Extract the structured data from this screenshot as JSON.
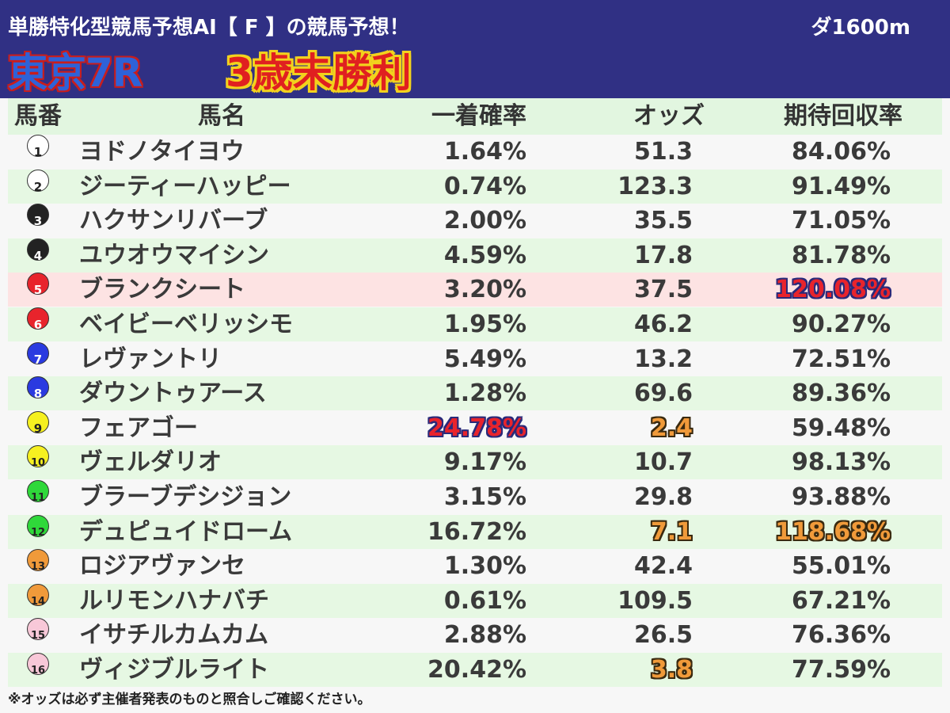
{
  "header": {
    "subtitle": "単勝特化型競馬予想AI【 F 】の競馬予想！",
    "distance": "ダ1600m",
    "venue_race": "東京7R",
    "race_class": "3歳未勝利"
  },
  "columns": {
    "number": "馬番",
    "name": "馬名",
    "win_prob": "一着確率",
    "odds": "オッズ",
    "expected_return": "期待回収率"
  },
  "colors": {
    "header_bg": "#303084",
    "row_green": "#e6f8e3",
    "row_white": "#f7f7f7",
    "row_highlight": "#fde3e3"
  },
  "rows": [
    {
      "number": "1",
      "name": "ヨドノタイヨウ",
      "win_prob": "1.64%",
      "odds": "51.3",
      "expected_return": "84.06%",
      "badge_bg": "#ffffff",
      "badge_fg": "#222222",
      "row_bg": "#f7f7f7"
    },
    {
      "number": "2",
      "name": "ジーティーハッピー",
      "win_prob": "0.74%",
      "odds": "123.3",
      "expected_return": "91.49%",
      "badge_bg": "#ffffff",
      "badge_fg": "#222222",
      "row_bg": "#e6f8e3"
    },
    {
      "number": "3",
      "name": "ハクサンリバーブ",
      "win_prob": "2.00%",
      "odds": "35.5",
      "expected_return": "71.05%",
      "badge_bg": "#222222",
      "badge_fg": "#ffffff",
      "row_bg": "#f7f7f7"
    },
    {
      "number": "4",
      "name": "ユウオウマイシン",
      "win_prob": "4.59%",
      "odds": "17.8",
      "expected_return": "81.78%",
      "badge_bg": "#222222",
      "badge_fg": "#ffffff",
      "row_bg": "#e6f8e3"
    },
    {
      "number": "5",
      "name": "ブランクシート",
      "win_prob": "3.20%",
      "odds": "37.5",
      "expected_return": "120.08%",
      "badge_bg": "#e8242c",
      "badge_fg": "#ffffff",
      "row_bg": "#fde3e3",
      "ret_hl": "blue"
    },
    {
      "number": "6",
      "name": "ベイビーベリッシモ",
      "win_prob": "1.95%",
      "odds": "46.2",
      "expected_return": "90.27%",
      "badge_bg": "#e8242c",
      "badge_fg": "#ffffff",
      "row_bg": "#e6f8e3"
    },
    {
      "number": "7",
      "name": "レヴァントリ",
      "win_prob": "5.49%",
      "odds": "13.2",
      "expected_return": "72.51%",
      "badge_bg": "#2a3ae0",
      "badge_fg": "#ffffff",
      "row_bg": "#f7f7f7"
    },
    {
      "number": "8",
      "name": "ダウントゥアース",
      "win_prob": "1.28%",
      "odds": "69.6",
      "expected_return": "89.36%",
      "badge_bg": "#2a3ae0",
      "badge_fg": "#ffffff",
      "row_bg": "#e6f8e3"
    },
    {
      "number": "9",
      "name": "フェアゴー",
      "win_prob": "24.78%",
      "odds": "2.4",
      "expected_return": "59.48%",
      "badge_bg": "#f6f020",
      "badge_fg": "#222222",
      "row_bg": "#f7f7f7",
      "prob_hl": "blue",
      "odds_hl": "orange"
    },
    {
      "number": "10",
      "name": "ヴェルダリオ",
      "win_prob": "9.17%",
      "odds": "10.7",
      "expected_return": "98.13%",
      "badge_bg": "#f6f020",
      "badge_fg": "#222222",
      "row_bg": "#e6f8e3"
    },
    {
      "number": "11",
      "name": "ブラーブデシジョン",
      "win_prob": "3.15%",
      "odds": "29.8",
      "expected_return": "93.88%",
      "badge_bg": "#2fd83a",
      "badge_fg": "#222222",
      "row_bg": "#f7f7f7"
    },
    {
      "number": "12",
      "name": "デュピュイドローム",
      "win_prob": "16.72%",
      "odds": "7.1",
      "expected_return": "118.68%",
      "badge_bg": "#2fd83a",
      "badge_fg": "#222222",
      "row_bg": "#e6f8e3",
      "odds_hl": "orange",
      "ret_hl": "orange"
    },
    {
      "number": "13",
      "name": "ロジアヴァンセ",
      "win_prob": "1.30%",
      "odds": "42.4",
      "expected_return": "55.01%",
      "badge_bg": "#f09a3a",
      "badge_fg": "#222222",
      "row_bg": "#f7f7f7"
    },
    {
      "number": "14",
      "name": "ルリモンハナバチ",
      "win_prob": "0.61%",
      "odds": "109.5",
      "expected_return": "67.21%",
      "badge_bg": "#f09a3a",
      "badge_fg": "#222222",
      "row_bg": "#e6f8e3"
    },
    {
      "number": "15",
      "name": "イサチルカムカム",
      "win_prob": "2.88%",
      "odds": "26.5",
      "expected_return": "76.36%",
      "badge_bg": "#f8c8d8",
      "badge_fg": "#222222",
      "row_bg": "#f7f7f7"
    },
    {
      "number": "16",
      "name": "ヴィジブルライト",
      "win_prob": "20.42%",
      "odds": "3.8",
      "expected_return": "77.59%",
      "badge_bg": "#f8c8d8",
      "badge_fg": "#222222",
      "row_bg": "#e6f8e3",
      "odds_hl": "orange"
    }
  ],
  "footnote": "※オッズは必ず主催者発表のものと照合しご確認ください。"
}
